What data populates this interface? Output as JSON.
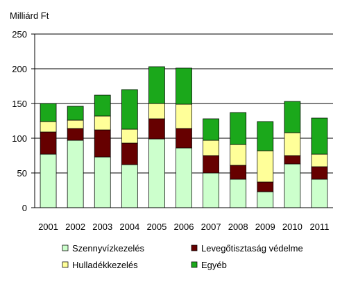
{
  "chart_data": {
    "type": "bar",
    "stacked": true,
    "ylabel": "Milliárd Ft",
    "ylim": [
      0,
      250
    ],
    "yticks": [
      0,
      50,
      100,
      150,
      200,
      250
    ],
    "ytick_labels": [
      "0",
      "50",
      "100",
      "150",
      "200",
      "250"
    ],
    "categories": [
      "2001",
      "2002",
      "2003",
      "2004",
      "2005",
      "2006",
      "2007",
      "2008",
      "2009",
      "2010",
      "2011"
    ],
    "grid": "horizontal",
    "legend_position": "bottom",
    "series": [
      {
        "name": "Szennyvízkezelés",
        "color": "#ccffcc",
        "values": [
          77,
          97,
          73,
          62,
          99,
          86,
          50,
          41,
          23,
          63,
          41
        ]
      },
      {
        "name": "Levegőtisztaság védelme",
        "color": "#660000",
        "values": [
          32,
          17,
          39,
          31,
          29,
          28,
          25,
          20,
          14,
          12,
          18
        ]
      },
      {
        "name": "Hulladékkezelés",
        "color": "#ffff99",
        "values": [
          15,
          12,
          20,
          20,
          22,
          35,
          22,
          30,
          45,
          33,
          18
        ]
      },
      {
        "name": "Egyéb",
        "color": "#1ba81b",
        "values": [
          26,
          20,
          30,
          57,
          53,
          52,
          31,
          46,
          42,
          45,
          52
        ]
      }
    ]
  }
}
